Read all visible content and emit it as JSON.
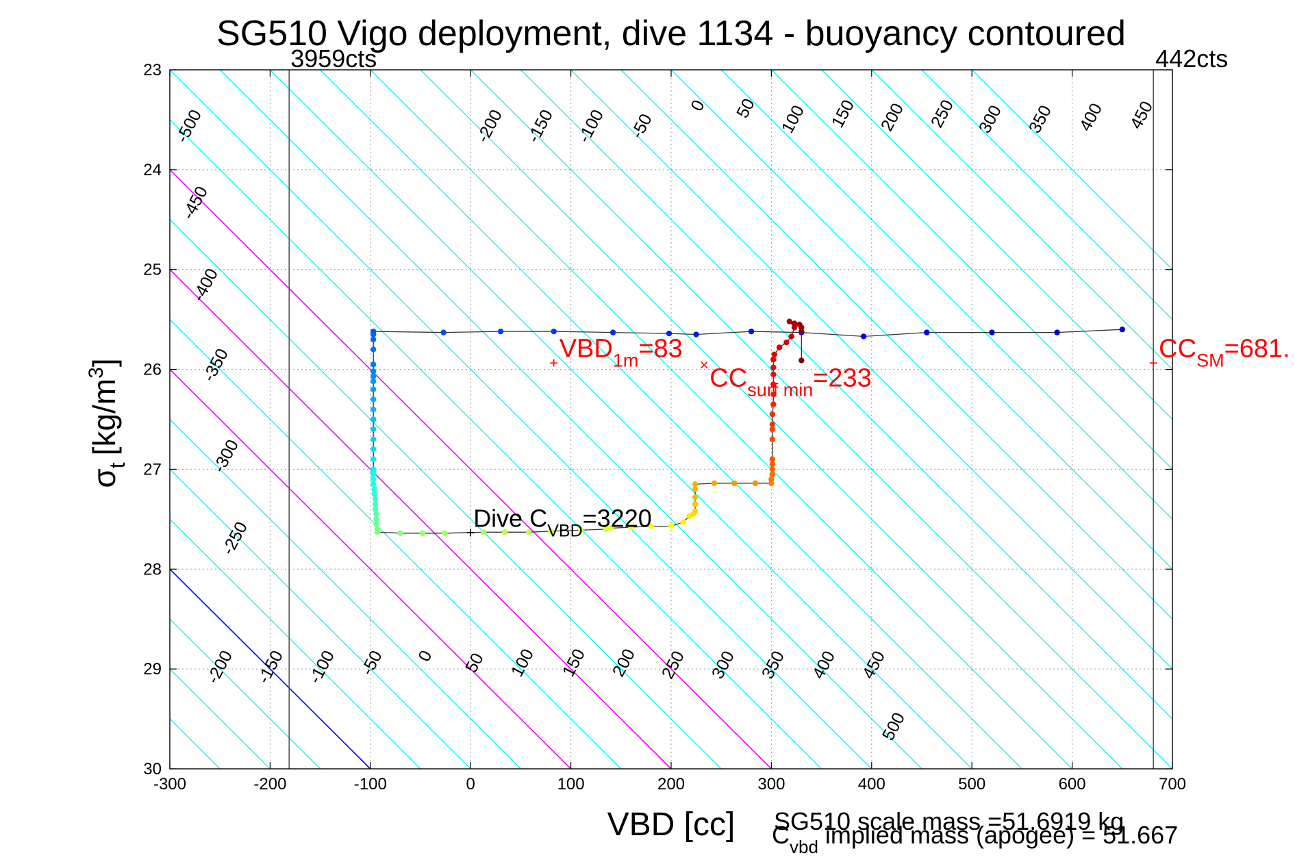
{
  "chart_data": {
    "type": "scatter",
    "title": "SG510 Vigo deployment, dive 1134 - buoyancy contoured",
    "xlabel": "VBD [cc]",
    "ylabel_base": "σ",
    "ylabel_sub": "t",
    "ylabel_units": "[kg/m",
    "ylabel_sup": "3",
    "ylabel_close": "]",
    "xlim": [
      -300,
      700
    ],
    "ylim": [
      23,
      30
    ],
    "y_reversed": true,
    "grid": true,
    "xticks": [
      "-300",
      "-200",
      "-100",
      "0",
      "100",
      "200",
      "300",
      "400",
      "500",
      "600",
      "700"
    ],
    "yticks": [
      "23",
      "24",
      "25",
      "26",
      "27",
      "28",
      "29",
      "30"
    ],
    "colors": {
      "contour": "#00ffff",
      "zero_contour": "#0000ff",
      "magenta_lines": "#ff00ff",
      "annotation": "#ff0000",
      "limit_line": "#000000"
    },
    "limit_lines": [
      {
        "x": -181,
        "label": "3959cts"
      },
      {
        "x": 681,
        "label": "442cts"
      }
    ],
    "buoyancy_contours": {
      "slope_cc_per_sigma": 100,
      "levels": [
        -550,
        -500,
        -450,
        -400,
        -350,
        -300,
        -250,
        -200,
        -150,
        -100,
        -50,
        0,
        50,
        100,
        150,
        200,
        250,
        300,
        350,
        400,
        450,
        500,
        550,
        600
      ],
      "top_labels": [
        "-500",
        "-200",
        "-150",
        "-100",
        "-50",
        "0",
        "50",
        "100",
        "150",
        "200",
        "250",
        "300",
        "350",
        "400",
        "450"
      ],
      "left_labels": [
        "-450",
        "-400",
        "-350",
        "-300",
        "-250"
      ],
      "bottom_labels": [
        "-200",
        "-150",
        "-100",
        "-50",
        "0",
        "50",
        "100",
        "150",
        "200",
        "250",
        "300",
        "350",
        "400",
        "450"
      ],
      "extra_label": "500"
    },
    "magenta_lines": [
      {
        "x_at_sigma30": 100
      },
      {
        "x_at_sigma30": 200
      },
      {
        "x_at_sigma30": 300
      }
    ],
    "annotations": [
      {
        "x": 83,
        "y": 25.93,
        "marker": "+",
        "text_main": "VBD",
        "text_sub": "1m",
        "text_after": "=83",
        "color": "#ff0000"
      },
      {
        "x": 233,
        "y": 25.95,
        "marker": "×",
        "text_main": "CC",
        "text_sub": "surf min",
        "text_after": "=233",
        "color": "#ff0000"
      },
      {
        "x": 681,
        "y": 25.93,
        "marker": "+",
        "text_main": "CC",
        "text_sub": "SM",
        "text_after": "=681.",
        "color": "#ff0000"
      },
      {
        "x": 0,
        "y": 27.63,
        "marker": "+",
        "text_main": "Dive C",
        "text_sub": "VBD",
        "text_after": "=3220",
        "color": "#000000"
      }
    ],
    "footer": {
      "scale_mass": "SG510 scale mass =51.6919 kg",
      "implied_main": "C",
      "implied_sub": "vbd",
      "implied_after": " implied mass (apogee) = 51.667"
    },
    "series": [
      {
        "name": "",
        "points": [
          [
            650,
            25.6
          ],
          [
            585,
            25.63
          ],
          [
            520,
            25.63
          ],
          [
            455,
            25.63
          ],
          [
            392,
            25.67
          ],
          [
            330,
            25.63
          ],
          [
            280,
            25.62
          ],
          [
            225,
            25.65
          ],
          [
            198,
            25.64
          ],
          [
            142,
            25.63
          ],
          [
            83,
            25.62
          ],
          [
            30,
            25.62
          ],
          [
            -27,
            25.63
          ],
          [
            -97,
            25.62
          ],
          [
            -97,
            25.65
          ],
          [
            -97,
            25.7
          ],
          [
            -97,
            25.8
          ],
          [
            -97,
            25.95
          ],
          [
            -97,
            26.02
          ],
          [
            -97,
            26.07
          ],
          [
            -97,
            26.12
          ],
          [
            -97,
            26.2
          ],
          [
            -97,
            26.3
          ],
          [
            -97,
            26.4
          ],
          [
            -97,
            26.5
          ],
          [
            -97,
            26.6
          ],
          [
            -97,
            26.7
          ],
          [
            -97,
            26.8
          ],
          [
            -97,
            26.9
          ],
          [
            -97,
            27.0
          ],
          [
            -97,
            27.02
          ],
          [
            -97,
            27.05
          ],
          [
            -97,
            27.1
          ],
          [
            -97,
            27.15
          ],
          [
            -96,
            27.2
          ],
          [
            -96,
            27.25
          ],
          [
            -95,
            27.3
          ],
          [
            -95,
            27.35
          ],
          [
            -95,
            27.4
          ],
          [
            -94,
            27.45
          ],
          [
            -94,
            27.5
          ],
          [
            -94,
            27.55
          ],
          [
            -93,
            27.6
          ],
          [
            -93,
            27.63
          ],
          [
            -70,
            27.64
          ],
          [
            -48,
            27.64
          ],
          [
            -26,
            27.64
          ],
          [
            13,
            27.63
          ],
          [
            34,
            27.63
          ],
          [
            58,
            27.63
          ],
          [
            80,
            27.62
          ],
          [
            110,
            27.61
          ],
          [
            135,
            27.6
          ],
          [
            140,
            27.59
          ],
          [
            160,
            27.58
          ],
          [
            180,
            27.57
          ],
          [
            200,
            27.57
          ],
          [
            212,
            27.53
          ],
          [
            218,
            27.47
          ],
          [
            222,
            27.45
          ],
          [
            224,
            27.42
          ],
          [
            224,
            27.35
          ],
          [
            224,
            27.28
          ],
          [
            224,
            27.2
          ],
          [
            224,
            27.15
          ],
          [
            243,
            27.14
          ],
          [
            263,
            27.14
          ],
          [
            284,
            27.14
          ],
          [
            300,
            27.14
          ],
          [
            300,
            27.1
          ],
          [
            301,
            27.05
          ],
          [
            301,
            27.0
          ],
          [
            301,
            26.95
          ],
          [
            301,
            26.9
          ],
          [
            301,
            26.7
          ],
          [
            301,
            26.6
          ],
          [
            301,
            26.55
          ],
          [
            301,
            26.45
          ],
          [
            302,
            26.35
          ],
          [
            302,
            26.25
          ],
          [
            302,
            26.15
          ],
          [
            302,
            26.05
          ],
          [
            302,
            25.98
          ],
          [
            302,
            25.9
          ],
          [
            303,
            25.85
          ],
          [
            308,
            25.78
          ],
          [
            315,
            25.73
          ],
          [
            320,
            25.67
          ],
          [
            323,
            25.58
          ],
          [
            318,
            25.52
          ],
          [
            323,
            25.54
          ],
          [
            328,
            25.55
          ],
          [
            330,
            25.58
          ],
          [
            330,
            25.62
          ],
          [
            330,
            25.91
          ]
        ]
      }
    ]
  }
}
